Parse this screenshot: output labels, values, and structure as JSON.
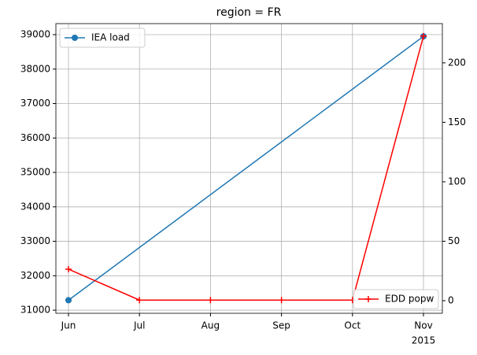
{
  "chart_data": {
    "type": "line",
    "title": "region = FR",
    "categories": [
      "Jun",
      "Jul",
      "Aug",
      "Sep",
      "Oct",
      "Nov"
    ],
    "x_sublabel": "2015",
    "series": [
      {
        "name": "IEA load",
        "color": "#1f77b4",
        "marker": "circle",
        "x": [
          "Jun",
          "Nov"
        ],
        "values": [
          31290,
          38950
        ]
      },
      {
        "name": "EDD popw",
        "color": "#ff0000",
        "marker": "plus",
        "axis": "y2",
        "values": [
          26.5,
          0.5,
          0.5,
          0.5,
          0.5,
          222.5
        ]
      }
    ],
    "ylim": [
      30910,
      39320
    ],
    "yticks": [
      31000,
      32000,
      33000,
      34000,
      35000,
      36000,
      37000,
      38000,
      39000
    ],
    "y2lim": [
      -10.6,
      233
    ],
    "y2ticks": [
      0,
      50,
      100,
      150,
      200
    ],
    "grid": true,
    "legend": [
      "upper left",
      "lower right"
    ]
  }
}
